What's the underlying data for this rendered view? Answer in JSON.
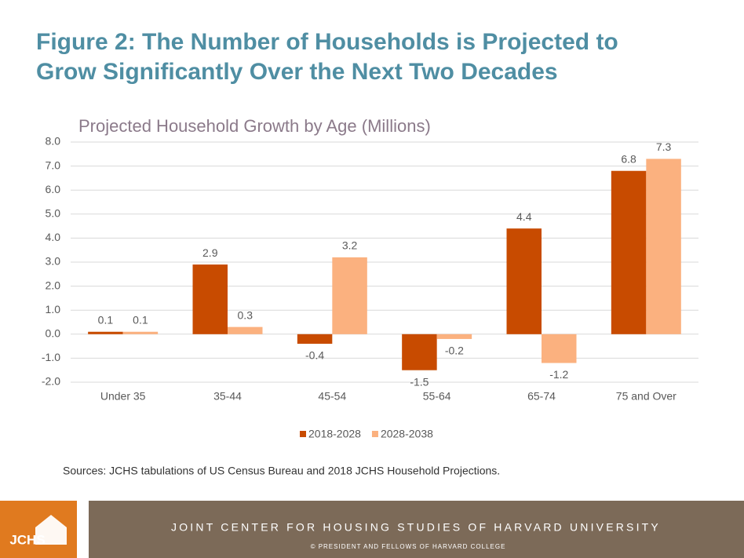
{
  "slide_title": [
    "Figure 2: The Number of Households is Projected to",
    "Grow Significantly Over the Next Two Decades"
  ],
  "chart_data": {
    "type": "bar",
    "title": "Projected Household Growth by Age (Millions)",
    "categories": [
      "Under 35",
      "35-44",
      "45-54",
      "55-64",
      "65-74",
      "75 and Over"
    ],
    "series": [
      {
        "name": "2018-2028",
        "color": "#c84b00",
        "values": [
          0.1,
          2.9,
          -0.4,
          -1.5,
          4.4,
          6.8
        ]
      },
      {
        "name": "2028-2038",
        "color": "#fbb17f",
        "values": [
          0.1,
          0.3,
          3.2,
          -0.2,
          -1.2,
          7.3
        ]
      }
    ],
    "ylim": [
      -2,
      8
    ],
    "yticks": [
      {
        "value": -2,
        "label": "-2.0"
      },
      {
        "value": -1,
        "label": "-1.0"
      },
      {
        "value": 0,
        "label": "0.0"
      },
      {
        "value": 1,
        "label": "1.0"
      },
      {
        "value": 2,
        "label": "2.0"
      },
      {
        "value": 3,
        "label": "3.0"
      },
      {
        "value": 4,
        "label": "4.0"
      },
      {
        "value": 5,
        "label": "5.0"
      },
      {
        "value": 6,
        "label": "6.0"
      },
      {
        "value": 7,
        "label": "7.0"
      },
      {
        "value": 8,
        "label": "8.0"
      }
    ],
    "grid": true,
    "legend": "bottom"
  },
  "source": "Sources: JCHS tabulations of US Census Bureau and 2018 JCHS Household Projections.",
  "footer": {
    "logo": "JCHS",
    "organization": "JOINT CENTER FOR HOUSING STUDIES OF HARVARD UNIVERSITY",
    "copyright": "© PRESIDENT AND FELLOWS OF HARVARD COLLEGE"
  }
}
